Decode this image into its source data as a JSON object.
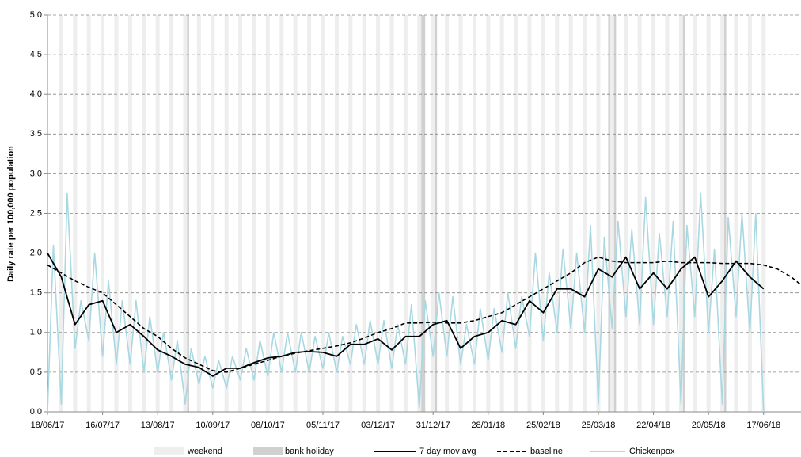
{
  "chart_data": {
    "type": "line",
    "ylabel": "Daily rate per 100,000 population",
    "xlim": [
      "18/06/17",
      "06/07/18"
    ],
    "xticks": [
      "18/06/17",
      "16/07/17",
      "13/08/17",
      "10/09/17",
      "08/10/17",
      "05/11/17",
      "03/12/17",
      "31/12/17",
      "28/01/18",
      "25/02/18",
      "25/03/18",
      "22/04/18",
      "20/05/18",
      "17/06/18"
    ],
    "ylim": [
      0,
      5
    ],
    "yticks": [
      {
        "value": 0,
        "label": "0.0"
      },
      {
        "value": 0.5,
        "label": "0.5"
      },
      {
        "value": 1,
        "label": "1.0"
      },
      {
        "value": 1.5,
        "label": "1.5"
      },
      {
        "value": 2,
        "label": "2.0"
      },
      {
        "value": 2.5,
        "label": "2.5"
      },
      {
        "value": 3,
        "label": "3.0"
      },
      {
        "value": 3.5,
        "label": "3.5"
      },
      {
        "value": 4,
        "label": "4.0"
      },
      {
        "value": 4.5,
        "label": "4.5"
      },
      {
        "value": 5,
        "label": "5.0"
      }
    ],
    "grid": true,
    "shading": [
      {
        "name": "weekend",
        "color": "#eeeeee",
        "dates": [
          "24/06/17",
          "01/07/17",
          "08/07/17",
          "15/07/17",
          "22/07/17",
          "29/07/17",
          "05/08/17",
          "12/08/17",
          "19/08/17",
          "26/08/17",
          "02/09/17",
          "09/09/17",
          "16/09/17",
          "23/09/17",
          "30/09/17",
          "07/10/17",
          "14/10/17",
          "21/10/17",
          "28/10/17",
          "04/11/17",
          "11/11/17",
          "18/11/17",
          "25/11/17",
          "02/12/17",
          "09/12/17",
          "16/12/17",
          "23/12/17",
          "30/12/17",
          "06/01/18",
          "13/01/18",
          "20/01/18",
          "27/01/18",
          "03/02/18",
          "10/02/18",
          "17/02/18",
          "24/02/18",
          "03/03/18",
          "10/03/18",
          "17/03/18",
          "24/03/18",
          "31/03/18",
          "07/04/18",
          "14/04/18",
          "21/04/18",
          "28/04/18",
          "05/05/18",
          "12/05/18",
          "19/05/18",
          "26/05/18",
          "02/06/18",
          "09/06/18",
          "16/06/18"
        ]
      },
      {
        "name": "bank holiday",
        "color": "#d0d0d0",
        "dates": [
          "28/08/17",
          "25/12/17",
          "26/12/17",
          "01/01/18",
          "30/03/18",
          "02/04/18",
          "07/05/18",
          "28/05/18"
        ]
      }
    ],
    "series": [
      {
        "name": "7 day mov avg",
        "color": "#000000",
        "style": "solid",
        "x": [
          "18/06/17",
          "25/06/17",
          "02/07/17",
          "09/07/17",
          "16/07/17",
          "23/07/17",
          "30/07/17",
          "06/08/17",
          "13/08/17",
          "20/08/17",
          "27/08/17",
          "03/09/17",
          "10/09/17",
          "17/09/17",
          "24/09/17",
          "01/10/17",
          "08/10/17",
          "15/10/17",
          "22/10/17",
          "29/10/17",
          "05/11/17",
          "12/11/17",
          "19/11/17",
          "26/11/17",
          "03/12/17",
          "10/12/17",
          "17/12/17",
          "24/12/17",
          "31/12/17",
          "07/01/18",
          "14/01/18",
          "21/01/18",
          "28/01/18",
          "04/02/18",
          "11/02/18",
          "18/02/18",
          "25/02/18",
          "04/03/18",
          "11/03/18",
          "18/03/18",
          "25/03/18",
          "01/04/18",
          "08/04/18",
          "15/04/18",
          "22/04/18",
          "29/04/18",
          "06/05/18",
          "13/05/18",
          "20/05/18",
          "27/05/18",
          "03/06/18",
          "10/06/18",
          "17/06/18"
        ],
        "values": [
          2.0,
          1.7,
          1.1,
          1.35,
          1.4,
          1.0,
          1.1,
          0.95,
          0.78,
          0.7,
          0.6,
          0.56,
          0.45,
          0.55,
          0.55,
          0.62,
          0.68,
          0.7,
          0.75,
          0.76,
          0.75,
          0.7,
          0.85,
          0.85,
          0.92,
          0.78,
          0.95,
          0.95,
          1.1,
          1.15,
          0.8,
          0.95,
          1.0,
          1.15,
          1.1,
          1.4,
          1.25,
          1.55,
          1.55,
          1.45,
          1.8,
          1.7,
          1.95,
          1.55,
          1.75,
          1.55,
          1.8,
          1.95,
          1.45,
          1.65,
          1.9,
          1.7,
          1.55
        ]
      },
      {
        "name": "baseline",
        "color": "#000000",
        "style": "dashed",
        "x": [
          "18/06/17",
          "25/06/17",
          "02/07/17",
          "09/07/17",
          "16/07/17",
          "23/07/17",
          "30/07/17",
          "06/08/17",
          "13/08/17",
          "20/08/17",
          "27/08/17",
          "03/09/17",
          "10/09/17",
          "17/09/17",
          "24/09/17",
          "01/10/17",
          "08/10/17",
          "15/10/17",
          "22/10/17",
          "29/10/17",
          "05/11/17",
          "12/11/17",
          "19/11/17",
          "26/11/17",
          "03/12/17",
          "10/12/17",
          "17/12/17",
          "24/12/17",
          "31/12/17",
          "07/01/18",
          "14/01/18",
          "21/01/18",
          "28/01/18",
          "04/02/18",
          "11/02/18",
          "18/02/18",
          "25/02/18",
          "04/03/18",
          "11/03/18",
          "18/03/18",
          "25/03/18",
          "01/04/18",
          "08/04/18",
          "15/04/18",
          "22/04/18",
          "29/04/18",
          "06/05/18",
          "13/05/18",
          "20/05/18",
          "27/05/18",
          "03/06/18",
          "10/06/18",
          "17/06/18",
          "24/06/18",
          "01/07/18",
          "06/07/18"
        ],
        "values": [
          1.85,
          1.75,
          1.65,
          1.57,
          1.5,
          1.35,
          1.2,
          1.05,
          0.95,
          0.8,
          0.68,
          0.6,
          0.52,
          0.5,
          0.55,
          0.6,
          0.65,
          0.7,
          0.74,
          0.77,
          0.8,
          0.83,
          0.87,
          0.93,
          1.0,
          1.05,
          1.12,
          1.12,
          1.13,
          1.12,
          1.12,
          1.15,
          1.2,
          1.25,
          1.35,
          1.45,
          1.55,
          1.65,
          1.75,
          1.88,
          1.95,
          1.9,
          1.88,
          1.88,
          1.88,
          1.9,
          1.88,
          1.88,
          1.88,
          1.87,
          1.87,
          1.87,
          1.85,
          1.8,
          1.7,
          1.6
        ]
      },
      {
        "name": "Chickenpox",
        "color": "#a8d8e2",
        "style": "solid",
        "x": [
          "18/06/17",
          "21/06/17",
          "25/06/17",
          "28/06/17",
          "02/07/17",
          "05/07/17",
          "09/07/17",
          "12/07/17",
          "16/07/17",
          "19/07/17",
          "23/07/17",
          "26/07/17",
          "30/07/17",
          "02/08/17",
          "06/08/17",
          "09/08/17",
          "13/08/17",
          "16/08/17",
          "20/08/17",
          "23/08/17",
          "27/08/17",
          "30/08/17",
          "03/09/17",
          "06/09/17",
          "10/09/17",
          "13/09/17",
          "17/09/17",
          "20/09/17",
          "24/09/17",
          "27/09/17",
          "01/10/17",
          "04/10/17",
          "08/10/17",
          "11/10/17",
          "15/10/17",
          "18/10/17",
          "22/10/17",
          "25/10/17",
          "29/10/17",
          "01/11/17",
          "05/11/17",
          "08/11/17",
          "12/11/17",
          "15/11/17",
          "19/11/17",
          "22/11/17",
          "26/11/17",
          "29/11/17",
          "03/12/17",
          "06/12/17",
          "10/12/17",
          "13/12/17",
          "17/12/17",
          "20/12/17",
          "24/12/17",
          "27/12/17",
          "31/12/17",
          "03/01/18",
          "07/01/18",
          "10/01/18",
          "14/01/18",
          "17/01/18",
          "21/01/18",
          "24/01/18",
          "28/01/18",
          "31/01/18",
          "04/02/18",
          "07/02/18",
          "11/02/18",
          "14/02/18",
          "18/02/18",
          "21/02/18",
          "25/02/18",
          "28/02/18",
          "04/03/18",
          "07/03/18",
          "11/03/18",
          "14/03/18",
          "18/03/18",
          "21/03/18",
          "25/03/18",
          "28/03/18",
          "01/04/18",
          "04/04/18",
          "08/04/18",
          "11/04/18",
          "15/04/18",
          "18/04/18",
          "22/04/18",
          "25/04/18",
          "29/04/18",
          "02/05/18",
          "06/05/18",
          "09/05/18",
          "13/05/18",
          "16/05/18",
          "20/05/18",
          "23/05/18",
          "27/05/18",
          "30/05/18",
          "03/06/18",
          "06/06/18",
          "10/06/18",
          "13/06/18",
          "17/06/18"
        ],
        "values": [
          0.0,
          2.1,
          0.1,
          2.75,
          0.8,
          1.4,
          0.9,
          2.0,
          0.7,
          1.65,
          0.6,
          1.4,
          0.6,
          1.4,
          0.5,
          1.2,
          0.5,
          1.0,
          0.4,
          0.9,
          0.1,
          0.8,
          0.35,
          0.7,
          0.3,
          0.65,
          0.3,
          0.7,
          0.4,
          0.8,
          0.4,
          0.9,
          0.45,
          1.0,
          0.5,
          1.0,
          0.5,
          1.0,
          0.5,
          0.95,
          0.55,
          1.0,
          0.5,
          0.95,
          0.6,
          1.1,
          0.6,
          1.15,
          0.6,
          1.15,
          0.55,
          1.1,
          0.6,
          1.35,
          0.05,
          1.4,
          0.7,
          1.5,
          0.7,
          1.45,
          0.6,
          1.1,
          0.6,
          1.3,
          0.65,
          1.3,
          0.75,
          1.5,
          0.8,
          1.45,
          0.95,
          2.0,
          0.9,
          1.75,
          1.0,
          2.05,
          1.05,
          2.0,
          1.0,
          2.35,
          0.1,
          2.2,
          1.05,
          2.4,
          1.2,
          2.3,
          1.1,
          2.7,
          1.1,
          2.25,
          1.2,
          2.4,
          0.1,
          2.35,
          1.2,
          2.75,
          1.0,
          2.05,
          0.1,
          2.45,
          1.2,
          2.5,
          1.0,
          2.5,
          0.0
        ]
      }
    ]
  }
}
